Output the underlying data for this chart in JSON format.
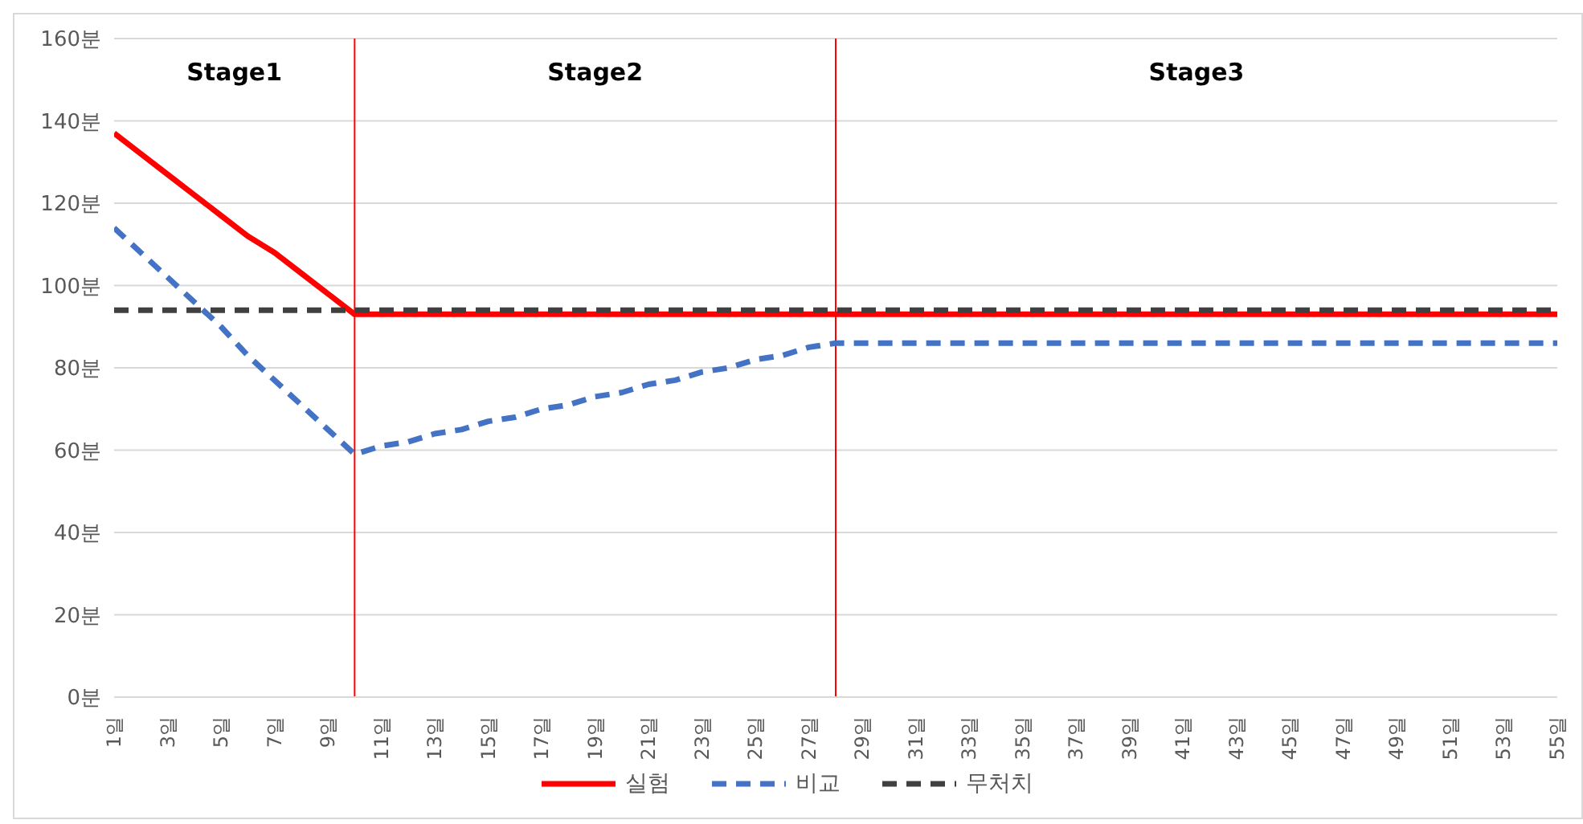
{
  "chart_data": {
    "type": "line",
    "x": [
      1,
      2,
      3,
      4,
      5,
      6,
      7,
      8,
      9,
      10,
      11,
      12,
      13,
      14,
      15,
      16,
      17,
      18,
      19,
      20,
      21,
      22,
      23,
      24,
      25,
      26,
      27,
      28,
      29,
      30,
      31,
      32,
      33,
      34,
      35,
      36,
      37,
      38,
      39,
      40,
      41,
      42,
      43,
      44,
      45,
      46,
      47,
      48,
      49,
      50,
      51,
      52,
      53,
      54,
      55
    ],
    "xlim": [
      1,
      55
    ],
    "xticks": [
      {
        "value": 1,
        "label": "1일"
      },
      {
        "value": 3,
        "label": "3일"
      },
      {
        "value": 5,
        "label": "5일"
      },
      {
        "value": 7,
        "label": "7일"
      },
      {
        "value": 9,
        "label": "9일"
      },
      {
        "value": 11,
        "label": "11일"
      },
      {
        "value": 13,
        "label": "13일"
      },
      {
        "value": 15,
        "label": "15일"
      },
      {
        "value": 17,
        "label": "17일"
      },
      {
        "value": 19,
        "label": "19일"
      },
      {
        "value": 21,
        "label": "21일"
      },
      {
        "value": 23,
        "label": "23일"
      },
      {
        "value": 25,
        "label": "25일"
      },
      {
        "value": 27,
        "label": "27일"
      },
      {
        "value": 29,
        "label": "29일"
      },
      {
        "value": 31,
        "label": "31일"
      },
      {
        "value": 33,
        "label": "33일"
      },
      {
        "value": 35,
        "label": "35일"
      },
      {
        "value": 37,
        "label": "37일"
      },
      {
        "value": 39,
        "label": "39일"
      },
      {
        "value": 41,
        "label": "41일"
      },
      {
        "value": 43,
        "label": "43일"
      },
      {
        "value": 45,
        "label": "45일"
      },
      {
        "value": 47,
        "label": "47일"
      },
      {
        "value": 49,
        "label": "49일"
      },
      {
        "value": 51,
        "label": "51일"
      },
      {
        "value": 53,
        "label": "53일"
      },
      {
        "value": 55,
        "label": "55일"
      }
    ],
    "ylim": [
      0,
      160
    ],
    "yticks": [
      {
        "value": 0,
        "label": "0분"
      },
      {
        "value": 20,
        "label": "20분"
      },
      {
        "value": 40,
        "label": "40분"
      },
      {
        "value": 60,
        "label": "60분"
      },
      {
        "value": 80,
        "label": "80분"
      },
      {
        "value": 100,
        "label": "100분"
      },
      {
        "value": 120,
        "label": "120분"
      },
      {
        "value": 140,
        "label": "140분"
      },
      {
        "value": 160,
        "label": "160분"
      }
    ],
    "grid": "y",
    "legend": "bottom",
    "marker": "none",
    "series": [
      {
        "name": "실험",
        "color": "#ff0000",
        "line_style": "solid",
        "values": [
          137,
          132,
          127,
          122,
          117,
          112,
          108,
          103,
          98,
          93,
          93,
          93,
          93,
          93,
          93,
          93,
          93,
          93,
          93,
          93,
          93,
          93,
          93,
          93,
          93,
          93,
          93,
          93,
          93,
          93,
          93,
          93,
          93,
          93,
          93,
          93,
          93,
          93,
          93,
          93,
          93,
          93,
          93,
          93,
          93,
          93,
          93,
          93,
          93,
          93,
          93,
          93,
          93,
          93,
          93
        ]
      },
      {
        "name": "비교",
        "color": "#4472c4",
        "line_style": "dashed",
        "values": [
          114,
          108,
          102,
          96,
          90,
          83,
          77,
          71,
          65,
          59,
          61,
          62,
          64,
          65,
          67,
          68,
          70,
          71,
          73,
          74,
          76,
          77,
          79,
          80,
          82,
          83,
          85,
          86,
          86,
          86,
          86,
          86,
          86,
          86,
          86,
          86,
          86,
          86,
          86,
          86,
          86,
          86,
          86,
          86,
          86,
          86,
          86,
          86,
          86,
          86,
          86,
          86,
          86,
          86,
          86
        ]
      },
      {
        "name": "무처치",
        "color": "#404040",
        "line_style": "dashed",
        "values": [
          94,
          94,
          94,
          94,
          94,
          94,
          94,
          94,
          94,
          94,
          94,
          94,
          94,
          94,
          94,
          94,
          94,
          94,
          94,
          94,
          94,
          94,
          94,
          94,
          94,
          94,
          94,
          94,
          94,
          94,
          94,
          94,
          94,
          94,
          94,
          94,
          94,
          94,
          94,
          94,
          94,
          94,
          94,
          94,
          94,
          94,
          94,
          94,
          94,
          94,
          94,
          94,
          94,
          94,
          94
        ]
      }
    ],
    "ref_lines": [
      {
        "axis": "x",
        "value": 10,
        "color": "#ff0000"
      },
      {
        "axis": "x",
        "value": 28,
        "color": "#ff0000"
      }
    ],
    "annotations": [
      "Stage1",
      "Stage2",
      "Stage3"
    ]
  }
}
